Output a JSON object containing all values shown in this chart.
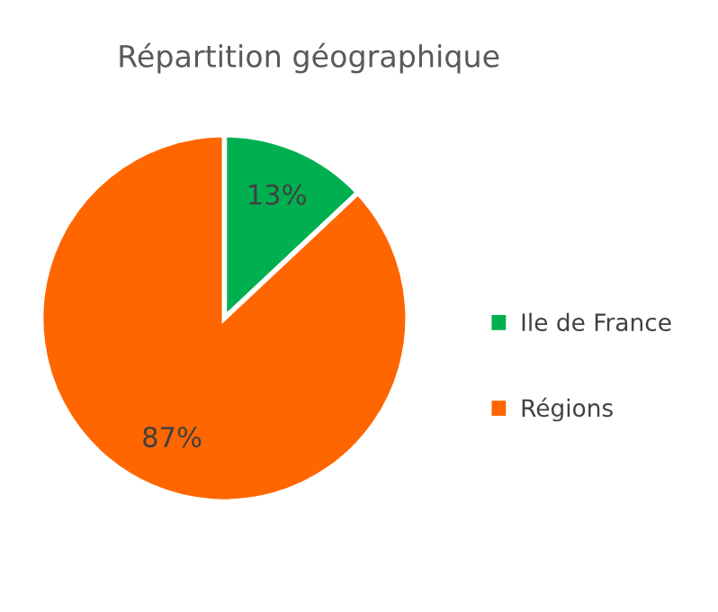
{
  "chart_data": {
    "type": "pie",
    "title": "Répartition géographique",
    "categories": [
      "Ile de France",
      "Régions"
    ],
    "values": [
      13,
      87
    ],
    "colors": [
      "#00b050",
      "#ff6600"
    ],
    "value_labels": [
      "13%",
      "87%"
    ],
    "legend": "right"
  }
}
